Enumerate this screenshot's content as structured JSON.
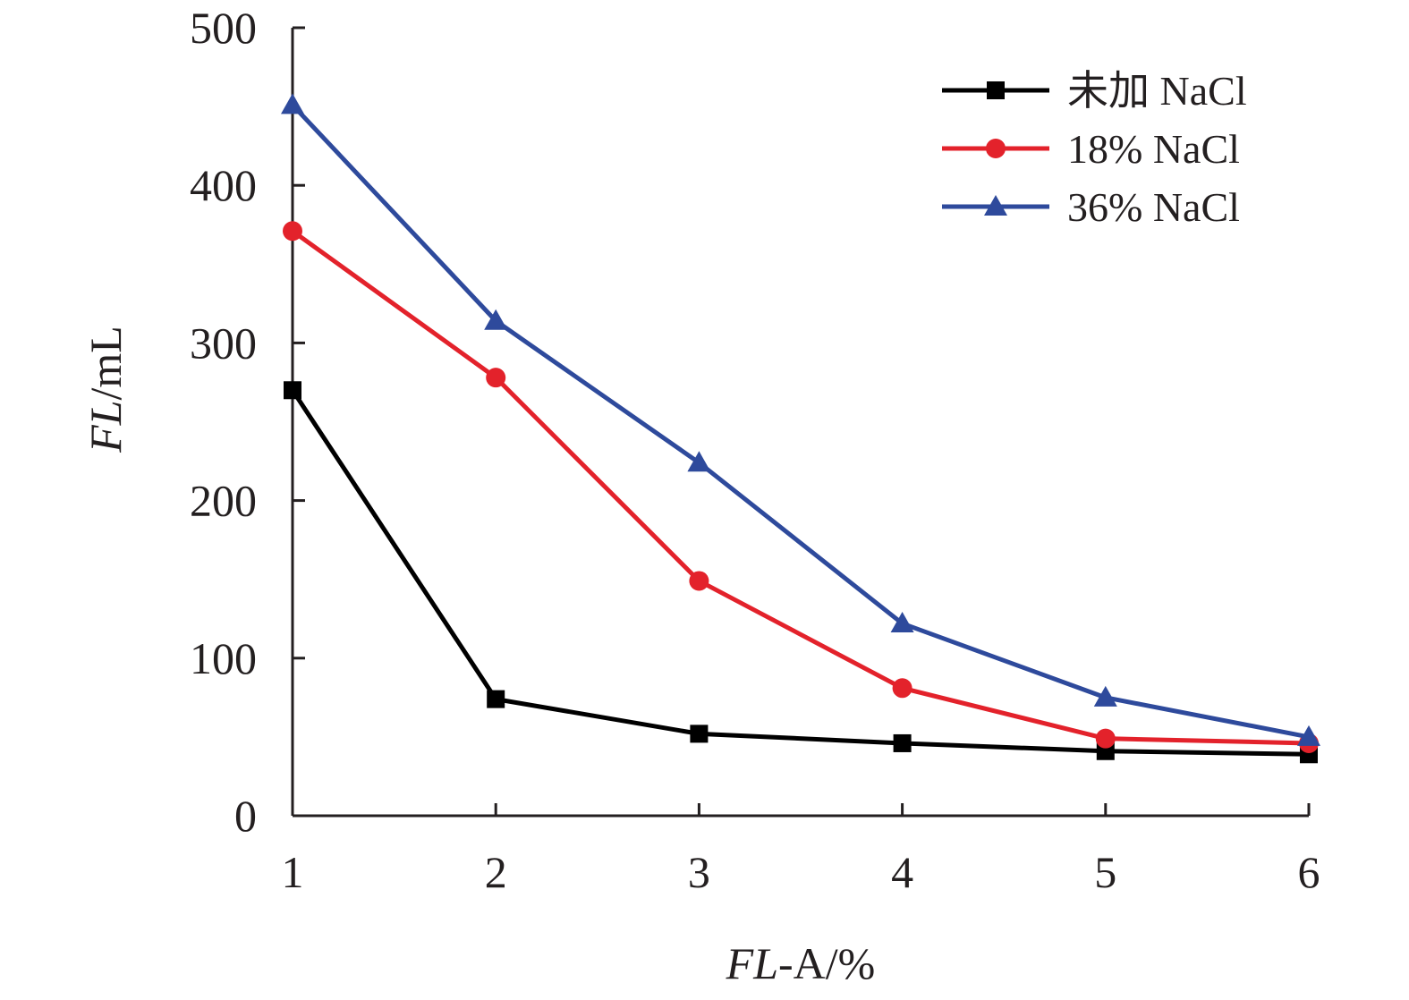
{
  "chart_data": {
    "type": "line",
    "x": [
      1,
      2,
      3,
      4,
      5,
      6
    ],
    "xlim": [
      1,
      6
    ],
    "ylim": [
      0,
      500
    ],
    "xticks": [
      "1",
      "2",
      "3",
      "4",
      "5",
      "6"
    ],
    "yticks": [
      "0",
      "100",
      "200",
      "300",
      "400",
      "500"
    ],
    "xlabel": {
      "italic": "FL",
      "rest": "-A/%"
    },
    "ylabel": {
      "italic": "FL",
      "rest": "/mL"
    },
    "grid": false,
    "legend_position": "top-right",
    "series": [
      {
        "name": "未加 NaCl",
        "color": "#000000",
        "marker": "square",
        "values": [
          270,
          74,
          52,
          46,
          41,
          39
        ]
      },
      {
        "name": "18% NaCl",
        "color": "#e3222b",
        "marker": "circle",
        "values": [
          371,
          278,
          149,
          81,
          49,
          46
        ]
      },
      {
        "name": "36% NaCl",
        "color": "#2e4a9c",
        "marker": "triangle",
        "values": [
          451,
          314,
          224,
          122,
          75,
          50
        ]
      }
    ]
  }
}
